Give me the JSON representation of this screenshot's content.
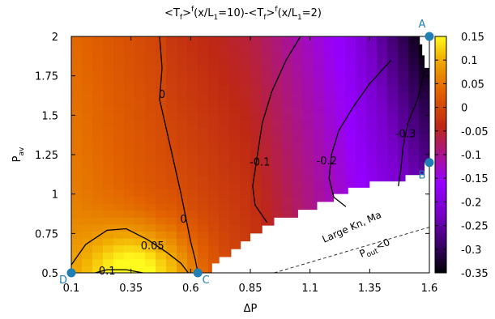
{
  "chart_data": {
    "type": "heatmap",
    "title": "<T_f>^f(x/L_1=10)-<T_f>^f(x/L_1=2)",
    "title_parts": {
      "a": "<T",
      "a_sub": "f",
      "b": ">",
      "b_sup": "f",
      "c": "(x/L",
      "c_sub": "1",
      "d": "=10)-<T",
      "e_sub": "f",
      "f": ">",
      "f_sup": "f",
      "g": "(x/L",
      "g_sub": "1",
      "h": "=2)"
    },
    "xlabel": "ΔP",
    "ylabel": {
      "main": "P",
      "sub": "av"
    },
    "xlim": [
      0.1,
      1.6
    ],
    "ylim": [
      0.5,
      2.0
    ],
    "xticks": [
      {
        "value": 0.1,
        "label": "0.1"
      },
      {
        "value": 0.35,
        "label": "0.35"
      },
      {
        "value": 0.6,
        "label": "0.6"
      },
      {
        "value": 0.85,
        "label": "0.85"
      },
      {
        "value": 1.1,
        "label": "1.1"
      },
      {
        "value": 1.35,
        "label": "1.35"
      },
      {
        "value": 1.6,
        "label": "1.6"
      }
    ],
    "yticks": [
      {
        "value": 0.5,
        "label": "0.5"
      },
      {
        "value": 0.75,
        "label": "0.75"
      },
      {
        "value": 1.0,
        "label": "1"
      },
      {
        "value": 1.25,
        "label": "1.25"
      },
      {
        "value": 1.5,
        "label": "1.5"
      },
      {
        "value": 1.75,
        "label": "1.75"
      },
      {
        "value": 2.0,
        "label": "2"
      }
    ],
    "colorbar": {
      "range": [
        -0.35,
        0.15
      ],
      "ticks": [
        {
          "value": 0.15,
          "label": "0.15"
        },
        {
          "value": 0.1,
          "label": "0.1"
        },
        {
          "value": 0.05,
          "label": "0.05"
        },
        {
          "value": 0.0,
          "label": "0"
        },
        {
          "value": -0.05,
          "label": "-0.05"
        },
        {
          "value": -0.1,
          "label": "-0.1"
        },
        {
          "value": -0.15,
          "label": "-0.15"
        },
        {
          "value": -0.2,
          "label": "-0.2"
        },
        {
          "value": -0.25,
          "label": "-0.25"
        },
        {
          "value": -0.3,
          "label": "-0.3"
        },
        {
          "value": -0.35,
          "label": "-0.35"
        }
      ]
    },
    "contour_labels": [
      {
        "text": "0",
        "x": 0.48,
        "y": 1.63
      },
      {
        "text": "0",
        "x": 0.57,
        "y": 0.84
      },
      {
        "text": "0.05",
        "x": 0.44,
        "y": 0.67
      },
      {
        "text": "0.1",
        "x": 0.25,
        "y": 0.51
      },
      {
        "text": "-0.1",
        "x": 0.89,
        "y": 1.2
      },
      {
        "text": "-0.2",
        "x": 1.17,
        "y": 1.21
      },
      {
        "text": "-0.3",
        "x": 1.5,
        "y": 1.38
      }
    ],
    "contours": [
      {
        "level": 0,
        "points": [
          [
            0.47,
            2.0
          ],
          [
            0.48,
            1.8
          ],
          [
            0.47,
            1.6
          ],
          [
            0.5,
            1.4
          ],
          [
            0.53,
            1.2
          ],
          [
            0.56,
            1.0
          ],
          [
            0.58,
            0.85
          ],
          [
            0.6,
            0.7
          ],
          [
            0.62,
            0.58
          ],
          [
            0.63,
            0.5
          ]
        ]
      },
      {
        "level": 0.05,
        "points": [
          [
            0.1,
            0.55
          ],
          [
            0.16,
            0.68
          ],
          [
            0.25,
            0.77
          ],
          [
            0.33,
            0.78
          ],
          [
            0.42,
            0.71
          ],
          [
            0.5,
            0.63
          ],
          [
            0.56,
            0.56
          ],
          [
            0.59,
            0.5
          ]
        ]
      },
      {
        "level": 0.1,
        "points": [
          [
            0.2,
            0.5
          ],
          [
            0.25,
            0.52
          ],
          [
            0.33,
            0.52
          ],
          [
            0.4,
            0.5
          ]
        ]
      },
      {
        "level": -0.1,
        "points": [
          [
            1.06,
            2.0
          ],
          [
            1.0,
            1.85
          ],
          [
            0.94,
            1.65
          ],
          [
            0.9,
            1.45
          ],
          [
            0.88,
            1.25
          ],
          [
            0.86,
            1.05
          ],
          [
            0.87,
            0.93
          ],
          [
            0.92,
            0.82
          ]
        ]
      },
      {
        "level": -0.2,
        "points": [
          [
            1.44,
            1.85
          ],
          [
            1.35,
            1.7
          ],
          [
            1.28,
            1.55
          ],
          [
            1.22,
            1.4
          ],
          [
            1.19,
            1.25
          ],
          [
            1.18,
            1.1
          ],
          [
            1.2,
            0.98
          ],
          [
            1.25,
            0.92
          ]
        ]
      },
      {
        "level": -0.3,
        "points": [
          [
            1.58,
            1.78
          ],
          [
            1.55,
            1.6
          ],
          [
            1.51,
            1.45
          ],
          [
            1.49,
            1.3
          ],
          [
            1.48,
            1.15
          ],
          [
            1.47,
            1.05
          ]
        ]
      }
    ],
    "boundary_steps": [
      [
        0.69,
        0.5
      ],
      [
        0.69,
        0.56
      ],
      [
        0.72,
        0.56
      ],
      [
        0.72,
        0.6
      ],
      [
        0.77,
        0.6
      ],
      [
        0.77,
        0.65
      ],
      [
        0.81,
        0.65
      ],
      [
        0.81,
        0.7
      ],
      [
        0.85,
        0.7
      ],
      [
        0.85,
        0.75
      ],
      [
        0.9,
        0.75
      ],
      [
        0.9,
        0.8
      ],
      [
        0.95,
        0.8
      ],
      [
        0.95,
        0.85
      ],
      [
        1.05,
        0.85
      ],
      [
        1.05,
        0.9
      ],
      [
        1.13,
        0.9
      ],
      [
        1.13,
        0.95
      ],
      [
        1.2,
        0.95
      ],
      [
        1.2,
        1.0
      ],
      [
        1.26,
        1.0
      ],
      [
        1.26,
        1.04
      ],
      [
        1.35,
        1.04
      ],
      [
        1.35,
        1.08
      ],
      [
        1.5,
        1.08
      ],
      [
        1.5,
        1.12
      ],
      [
        1.58,
        1.12
      ],
      [
        1.58,
        1.2
      ],
      [
        1.6,
        1.2
      ]
    ],
    "upper_edge_steps": [
      [
        1.56,
        2.0
      ],
      [
        1.56,
        1.95
      ],
      [
        1.57,
        1.95
      ],
      [
        1.57,
        1.88
      ],
      [
        1.58,
        1.88
      ],
      [
        1.58,
        1.8
      ],
      [
        1.6,
        1.8
      ]
    ],
    "pout_line": [
      [
        0.95,
        0.5
      ],
      [
        1.6,
        0.79
      ]
    ],
    "region_label": "Large Kn, Ma",
    "pout_label": {
      "main": "P",
      "sub": "out",
      "rest": "<0"
    },
    "markers": [
      {
        "label": "A",
        "x": 1.6,
        "y": 2.0
      },
      {
        "label": "B",
        "x": 1.6,
        "y": 1.2
      },
      {
        "label": "C",
        "x": 0.63,
        "y": 0.5
      },
      {
        "label": "D",
        "x": 0.1,
        "y": 0.5
      }
    ],
    "marker_color": "#1f7fb5",
    "grid": false
  }
}
